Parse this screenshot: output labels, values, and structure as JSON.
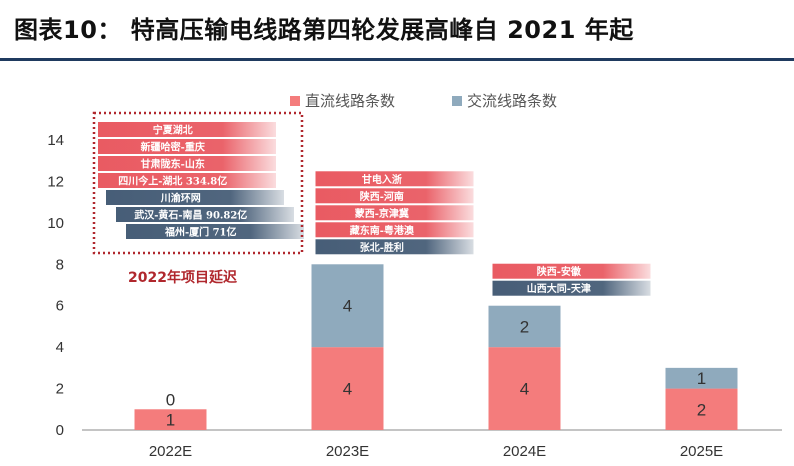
{
  "header": {
    "title": "图表10：  特高压输电线路第四轮发展高峰自 2021 年起"
  },
  "note": "2022年项目延迟",
  "colors": {
    "dc": "#f47c7c",
    "ac": "#8faabd",
    "dc_proj": "#e8525a",
    "ac_proj": "#3d5570",
    "note_border": "#b0272d",
    "rule": "#1f3a5f"
  },
  "chart_data": {
    "type": "bar",
    "stacked": true,
    "categories": [
      "2022E",
      "2023E",
      "2024E",
      "2025E"
    ],
    "series": [
      {
        "name": "直流线路条数",
        "key": "dc",
        "values": [
          1,
          4,
          4,
          2
        ]
      },
      {
        "name": "交流线路条数",
        "key": "ac",
        "values": [
          0,
          4,
          2,
          1
        ]
      }
    ],
    "ylim": [
      0,
      14
    ],
    "yticks": [
      0,
      2,
      4,
      6,
      8,
      10,
      12,
      14
    ],
    "legend_position": "top",
    "grid": false,
    "projects": [
      {
        "category": "2022E",
        "dc": [
          "宁夏湖北",
          "新疆哈密-重庆",
          "甘肃陇东-山东",
          "四川今上-湖北 334.8亿"
        ],
        "ac": [
          "川渝环网",
          "武汉-黄石-南昌 90.82亿",
          "福州-厦门 71亿"
        ]
      },
      {
        "category": "2023E",
        "dc": [
          "甘电入浙",
          "陕西-河南",
          "蒙西-京津冀",
          "藏东南-粤港澳"
        ],
        "ac": [
          "张北-胜利"
        ]
      },
      {
        "category": "2024E",
        "dc": [
          "陕西-安徽"
        ],
        "ac": [
          "山西大同-天津"
        ]
      },
      {
        "category": "2025E",
        "dc": [],
        "ac": []
      }
    ]
  }
}
